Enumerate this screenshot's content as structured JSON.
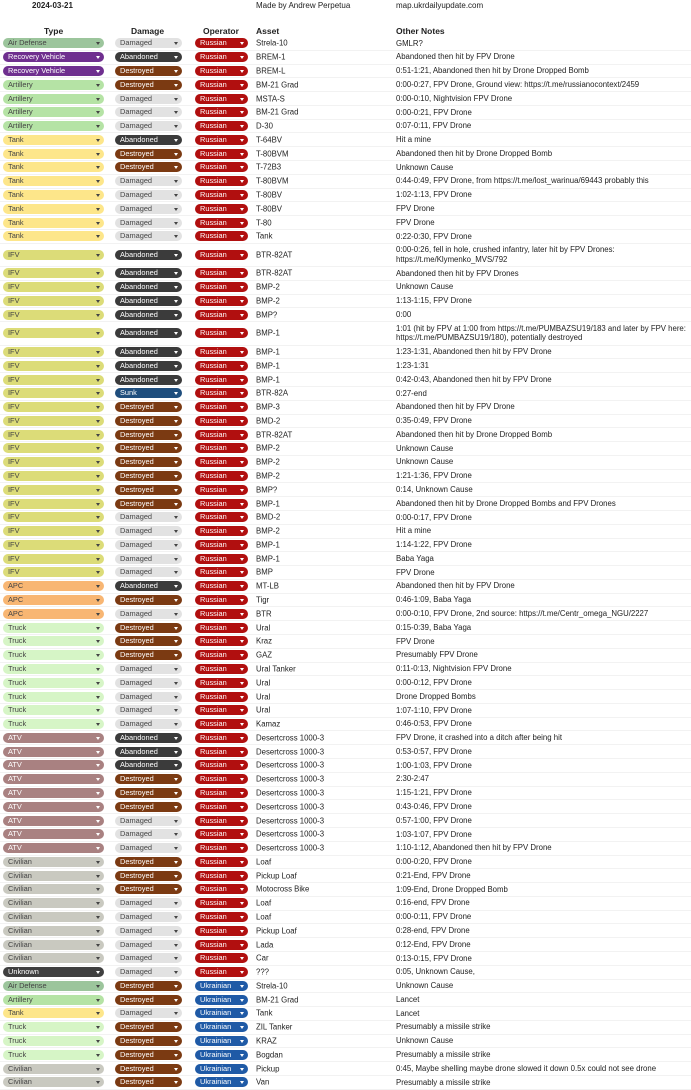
{
  "header": {
    "date": "2024-03-21",
    "author": "Made by Andrew Perpetua",
    "site": "map.ukrdailyupdate.com"
  },
  "columns": [
    "Type",
    "Damage",
    "Operator",
    "Asset",
    "Other Notes"
  ],
  "type_colors": {
    "Air Defense": "#9cc59c",
    "Recovery Vehicle": "#6f2f8f",
    "Artillery": "#b5e3a5",
    "Tank": "#fde68a",
    "IFV": "#dcdc78",
    "APC": "#f8b673",
    "Truck": "#d6f5c6",
    "ATV": "#a98181",
    "Civilian": "#c9c9c0",
    "Unknown": "#3f3f3f"
  },
  "damage_colors": {
    "Damaged": "#e2e2e2",
    "Abandoned": "#3b3b3b",
    "Destroyed": "#7b3a12",
    "Sunk": "#1f4e7d"
  },
  "operator_colors": {
    "Russian": "#b10f0f",
    "Ukrainian": "#1f5aa6"
  },
  "rows": [
    [
      "Air Defense",
      "Damaged",
      "Russian",
      "Strela-10",
      "GMLR?"
    ],
    [
      "Recovery Vehicle",
      "Abandoned",
      "Russian",
      "BREM-1",
      "Abandoned then hit by FPV Drone"
    ],
    [
      "Recovery Vehicle",
      "Destroyed",
      "Russian",
      "BREM-L",
      "0:51-1:21, Abandoned then hit by Drone Dropped Bomb"
    ],
    [
      "Artillery",
      "Destroyed",
      "Russian",
      "BM-21 Grad",
      "0:00-0:27, FPV Drone, Ground view: https://t.me/russianocontext/2459"
    ],
    [
      "Artillery",
      "Damaged",
      "Russian",
      "MSTA-S",
      "0:00-0:10, Nightvision FPV Drone"
    ],
    [
      "Artillery",
      "Damaged",
      "Russian",
      "BM-21 Grad",
      "0:00-0:21, FPV Drone"
    ],
    [
      "Artillery",
      "Damaged",
      "Russian",
      "D-30",
      "0:07-0:11, FPV Drone"
    ],
    [
      "Tank",
      "Abandoned",
      "Russian",
      "T-64BV",
      "Hit a mine"
    ],
    [
      "Tank",
      "Destroyed",
      "Russian",
      "T-80BVM",
      "Abandoned then hit by Drone Dropped Bomb"
    ],
    [
      "Tank",
      "Destroyed",
      "Russian",
      "T-72B3",
      "Unknown Cause"
    ],
    [
      "Tank",
      "Damaged",
      "Russian",
      "T-80BVM",
      "0:44-0:49, FPV Drone, from https://t.me/lost_warinua/69443 probably this"
    ],
    [
      "Tank",
      "Damaged",
      "Russian",
      "T-80BV",
      "1:02-1:13, FPV Drone"
    ],
    [
      "Tank",
      "Damaged",
      "Russian",
      "T-80BV",
      "FPV Drone"
    ],
    [
      "Tank",
      "Damaged",
      "Russian",
      "T-80",
      "FPV Drone"
    ],
    [
      "Tank",
      "Damaged",
      "Russian",
      "Tank",
      "0:22-0:30, FPV Drone"
    ],
    [
      "IFV",
      "Abandoned",
      "Russian",
      "BTR-82AT",
      "0:00-0:26, fell in hole, crushed infantry, later hit by FPV Drones: https://t.me/Klymenko_MVS/792"
    ],
    [
      "IFV",
      "Abandoned",
      "Russian",
      "BTR-82AT",
      "Abandoned then hit by FPV Drones"
    ],
    [
      "IFV",
      "Abandoned",
      "Russian",
      "BMP-2",
      "Unknown Cause"
    ],
    [
      "IFV",
      "Abandoned",
      "Russian",
      "BMP-2",
      "1:13-1:15, FPV Drone"
    ],
    [
      "IFV",
      "Abandoned",
      "Russian",
      "BMP?",
      "0:00"
    ],
    [
      "IFV",
      "Abandoned",
      "Russian",
      "BMP-1",
      "1:01 (hit by FPV at 1:00 from https://t.me/PUMBAZSU19/183 and later by FPV here: https://t.me/PUMBAZSU19/180), potentially destroyed"
    ],
    [
      "IFV",
      "Abandoned",
      "Russian",
      "BMP-1",
      "1:23-1:31, Abandoned then hit by FPV Drone"
    ],
    [
      "IFV",
      "Abandoned",
      "Russian",
      "BMP-1",
      "1:23-1:31"
    ],
    [
      "IFV",
      "Abandoned",
      "Russian",
      "BMP-1",
      "0:42-0:43, Abandoned then hit by FPV Drone"
    ],
    [
      "IFV",
      "Sunk",
      "Russian",
      "BTR-82A",
      "0:27-end"
    ],
    [
      "IFV",
      "Destroyed",
      "Russian",
      "BMP-3",
      "Abandoned then hit by FPV Drone"
    ],
    [
      "IFV",
      "Destroyed",
      "Russian",
      "BMD-2",
      "0:35-0:49, FPV Drone"
    ],
    [
      "IFV",
      "Destroyed",
      "Russian",
      "BTR-82AT",
      "Abandoned then hit by Drone Dropped Bomb"
    ],
    [
      "IFV",
      "Destroyed",
      "Russian",
      "BMP-2",
      "Unknown Cause"
    ],
    [
      "IFV",
      "Destroyed",
      "Russian",
      "BMP-2",
      "Unknown Cause"
    ],
    [
      "IFV",
      "Destroyed",
      "Russian",
      "BMP-2",
      "1:21-1:36, FPV Drone"
    ],
    [
      "IFV",
      "Destroyed",
      "Russian",
      "BMP?",
      "0:14, Unknown Cause"
    ],
    [
      "IFV",
      "Destroyed",
      "Russian",
      "BMP-1",
      "Abandoned then hit by Drone Dropped Bombs and FPV Drones"
    ],
    [
      "IFV",
      "Damaged",
      "Russian",
      "BMD-2",
      "0:00-0:17, FPV Drone"
    ],
    [
      "IFV",
      "Damaged",
      "Russian",
      "BMP-2",
      "Hit a mine"
    ],
    [
      "IFV",
      "Damaged",
      "Russian",
      "BMP-1",
      "1:14-1:22, FPV Drone"
    ],
    [
      "IFV",
      "Damaged",
      "Russian",
      "BMP-1",
      "Baba Yaga"
    ],
    [
      "IFV",
      "Damaged",
      "Russian",
      "BMP",
      "FPV Drone"
    ],
    [
      "APC",
      "Abandoned",
      "Russian",
      "MT-LB",
      "Abandoned then hit by FPV Drone"
    ],
    [
      "APC",
      "Destroyed",
      "Russian",
      "Tigr",
      "0:46-1:09, Baba Yaga"
    ],
    [
      "APC",
      "Damaged",
      "Russian",
      "BTR",
      "0:00-0:10, FPV Drone, 2nd source: https://t.me/Centr_omega_NGU/2227"
    ],
    [
      "Truck",
      "Destroyed",
      "Russian",
      "Ural",
      "0:15-0:39, Baba Yaga"
    ],
    [
      "Truck",
      "Destroyed",
      "Russian",
      "Kraz",
      "FPV Drone"
    ],
    [
      "Truck",
      "Destroyed",
      "Russian",
      "GAZ",
      "Presumably FPV Drone"
    ],
    [
      "Truck",
      "Damaged",
      "Russian",
      "Ural Tanker",
      "0:11-0:13, Nightvision FPV Drone"
    ],
    [
      "Truck",
      "Damaged",
      "Russian",
      "Ural",
      "0:00-0:12, FPV Drone"
    ],
    [
      "Truck",
      "Damaged",
      "Russian",
      "Ural",
      "Drone Dropped Bombs"
    ],
    [
      "Truck",
      "Damaged",
      "Russian",
      "Ural",
      "1:07-1:10, FPV Drone"
    ],
    [
      "Truck",
      "Damaged",
      "Russian",
      "Kamaz",
      "0:46-0:53, FPV Drone"
    ],
    [
      "ATV",
      "Abandoned",
      "Russian",
      "Desertcross 1000-3",
      "FPV Drone, it crashed into a ditch after being hit"
    ],
    [
      "ATV",
      "Abandoned",
      "Russian",
      "Desertcross 1000-3",
      "0:53-0:57, FPV Drone"
    ],
    [
      "ATV",
      "Abandoned",
      "Russian",
      "Desertcross 1000-3",
      "1:00-1:03, FPV Drone"
    ],
    [
      "ATV",
      "Destroyed",
      "Russian",
      "Desertcross 1000-3",
      "2:30-2:47"
    ],
    [
      "ATV",
      "Destroyed",
      "Russian",
      "Desertcross 1000-3",
      "1:15-1:21, FPV Drone"
    ],
    [
      "ATV",
      "Destroyed",
      "Russian",
      "Desertcross 1000-3",
      "0:43-0:46, FPV Drone"
    ],
    [
      "ATV",
      "Damaged",
      "Russian",
      "Desertcross 1000-3",
      "0:57-1:00, FPV Drone"
    ],
    [
      "ATV",
      "Damaged",
      "Russian",
      "Desertcross 1000-3",
      "1:03-1:07, FPV Drone"
    ],
    [
      "ATV",
      "Damaged",
      "Russian",
      "Desertcross 1000-3",
      "1:10-1:12, Abandoned then hit by FPV Drone"
    ],
    [
      "Civilian",
      "Destroyed",
      "Russian",
      "Loaf",
      "0:00-0:20, FPV Drone"
    ],
    [
      "Civilian",
      "Destroyed",
      "Russian",
      "Pickup Loaf",
      "0:21-End, FPV Drone"
    ],
    [
      "Civilian",
      "Destroyed",
      "Russian",
      "Motocross Bike",
      "1:09-End, Drone Dropped Bomb"
    ],
    [
      "Civilian",
      "Damaged",
      "Russian",
      "Loaf",
      "0:16-end, FPV Drone"
    ],
    [
      "Civilian",
      "Damaged",
      "Russian",
      "Loaf",
      "0:00-0:11, FPV Drone"
    ],
    [
      "Civilian",
      "Damaged",
      "Russian",
      "Pickup Loaf",
      "0:28-end, FPV Drone"
    ],
    [
      "Civilian",
      "Damaged",
      "Russian",
      "Lada",
      "0:12-End, FPV Drone"
    ],
    [
      "Civilian",
      "Damaged",
      "Russian",
      "Car",
      "0:13-0:15, FPV Drone"
    ],
    [
      "Unknown",
      "Damaged",
      "Russian",
      "???",
      "0:05, Unknown Cause,"
    ],
    [
      "Air Defense",
      "Destroyed",
      "Ukrainian",
      "Strela-10",
      "Unknown Cause"
    ],
    [
      "Artillery",
      "Destroyed",
      "Ukrainian",
      "BM-21 Grad",
      "Lancet"
    ],
    [
      "Tank",
      "Damaged",
      "Ukrainian",
      "Tank",
      "Lancet"
    ],
    [
      "Truck",
      "Destroyed",
      "Ukrainian",
      "ZIL Tanker",
      "Presumably a missile strike"
    ],
    [
      "Truck",
      "Destroyed",
      "Ukrainian",
      "KRAZ",
      "Unknown Cause"
    ],
    [
      "Truck",
      "Destroyed",
      "Ukrainian",
      "Bogdan",
      "Presumably a missile strike"
    ],
    [
      "Civilian",
      "Destroyed",
      "Ukrainian",
      "Pickup",
      "0:45, Maybe shelling maybe drone slowed it down 0.5x could not see drone"
    ],
    [
      "Civilian",
      "Destroyed",
      "Ukrainian",
      "Van",
      "Presumably a missile strike"
    ]
  ]
}
